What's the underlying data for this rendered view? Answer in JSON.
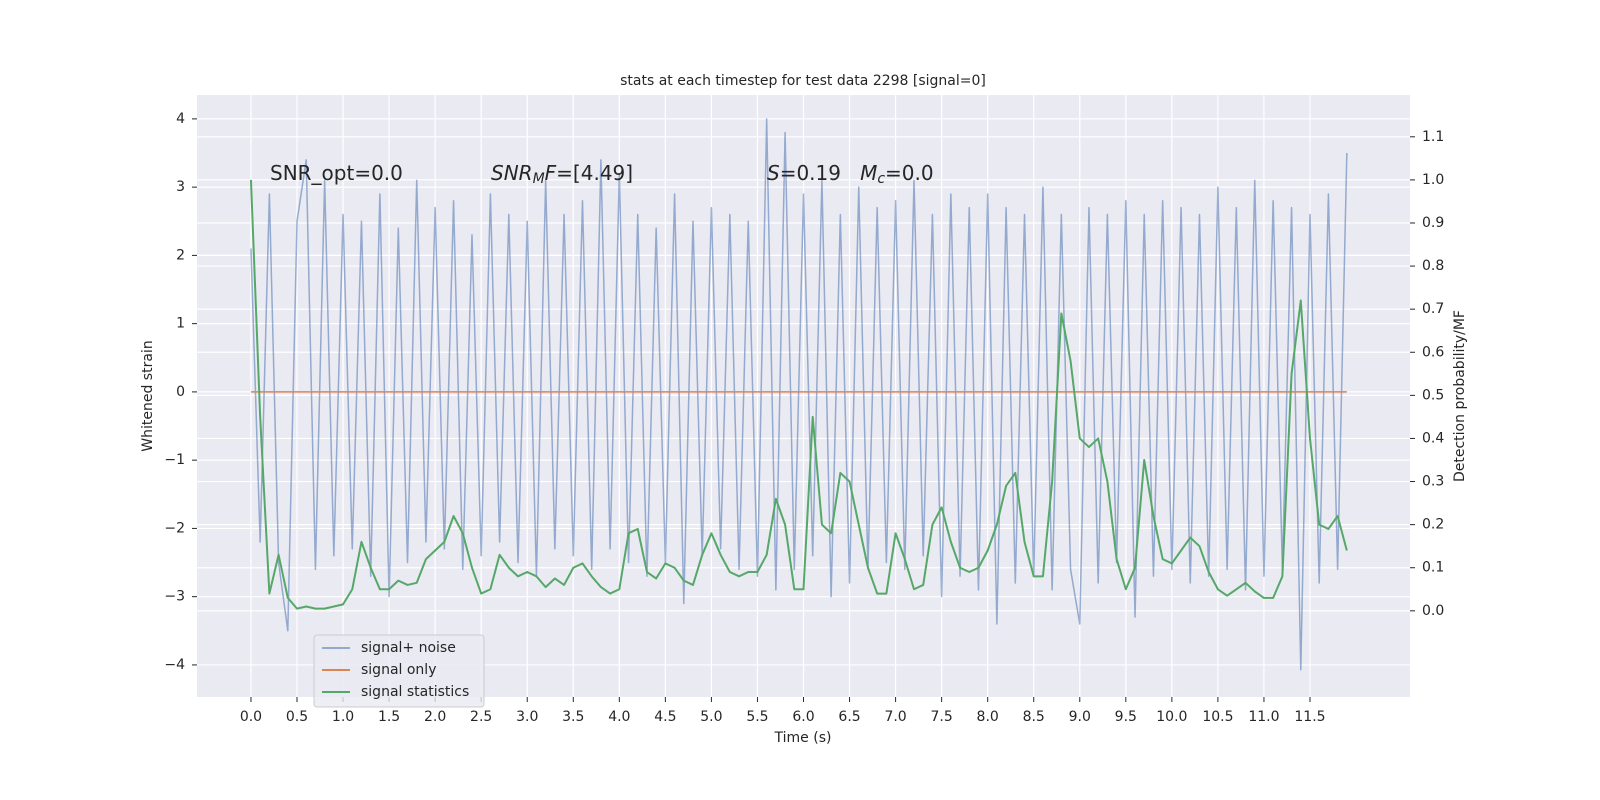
{
  "chart_data": {
    "type": "line",
    "title": "stats at each timestep for test data 2298 [signal=0]",
    "x_label": "Time (s)",
    "y_label": "Whitened strain",
    "y2_label": "Detection probability/MF",
    "annotations": [
      {
        "parts": [
          {
            "text": "SNR_opt=0.0",
            "style": "normal"
          }
        ]
      },
      {
        "parts": [
          {
            "text": "SNR",
            "style": "italic"
          },
          {
            "text": "M",
            "style": "sub"
          },
          {
            "text": "F",
            "style": "italic"
          },
          {
            "text": "=[4.49]",
            "style": "normal"
          }
        ]
      },
      {
        "parts": [
          {
            "text": "S",
            "style": "italic"
          },
          {
            "text": "=0.19   ",
            "style": "normal"
          },
          {
            "text": "M",
            "style": "italic"
          },
          {
            "text": "c",
            "style": "sub"
          },
          {
            "text": "=0.0",
            "style": "normal"
          }
        ]
      }
    ],
    "x": [
      0,
      0.1,
      0.2,
      0.3,
      0.4,
      0.5,
      0.6,
      0.7,
      0.8,
      0.9,
      1,
      1.1,
      1.2,
      1.3,
      1.4,
      1.5,
      1.6,
      1.7,
      1.8,
      1.9,
      2,
      2.1,
      2.2,
      2.3,
      2.4,
      2.5,
      2.6,
      2.7,
      2.8,
      2.9,
      3,
      3.1,
      3.2,
      3.3,
      3.4,
      3.5,
      3.6,
      3.7,
      3.8,
      3.9,
      4,
      4.1,
      4.2,
      4.3,
      4.4,
      4.5,
      4.6,
      4.7,
      4.8,
      4.9,
      5,
      5.1,
      5.2,
      5.3,
      5.4,
      5.5,
      5.6,
      5.7,
      5.8,
      5.9,
      6,
      6.1,
      6.2,
      6.3,
      6.4,
      6.5,
      6.6,
      6.7,
      6.8,
      6.9,
      7,
      7.1,
      7.2,
      7.3,
      7.4,
      7.5,
      7.6,
      7.7,
      7.8,
      7.9,
      8,
      8.1,
      8.2,
      8.3,
      8.4,
      8.5,
      8.6,
      8.7,
      8.8,
      8.9,
      9,
      9.1,
      9.2,
      9.3,
      9.4,
      9.5,
      9.6,
      9.7,
      9.8,
      9.9,
      10,
      10.1,
      10.2,
      10.3,
      10.4,
      10.5,
      10.6,
      10.7,
      10.8,
      10.9,
      11,
      11.1,
      11.2,
      11.3,
      11.4,
      11.5,
      11.6,
      11.7,
      11.8,
      11.9
    ],
    "series": [
      {
        "name": "signal+ noise",
        "color": "#4c72b0",
        "alpha": 0.55,
        "axis": "y",
        "values": [
          2.1,
          -2.2,
          2.9,
          -2.5,
          -3.5,
          2.5,
          3.4,
          -2.6,
          3.1,
          -2.4,
          2.6,
          -2.3,
          2.5,
          -2.7,
          2.9,
          -3.0,
          2.4,
          -2.5,
          3.1,
          -2.2,
          2.7,
          -2.3,
          2.8,
          -2.6,
          2.3,
          -2.4,
          2.9,
          -2.2,
          2.6,
          -2.5,
          2.5,
          -2.7,
          3.1,
          -2.3,
          2.6,
          -2.4,
          2.8,
          -2.6,
          3.4,
          -2.3,
          3.2,
          -2.5,
          2.6,
          -2.7,
          2.4,
          -2.5,
          2.9,
          -3.1,
          2.5,
          -2.4,
          2.7,
          -2.3,
          2.6,
          -2.6,
          2.5,
          -2.7,
          4.0,
          -2.9,
          3.8,
          -2.6,
          2.9,
          -2.4,
          3.1,
          -3.0,
          2.6,
          -2.8,
          3.0,
          -2.6,
          2.7,
          -2.5,
          2.8,
          -2.6,
          3.1,
          -2.4,
          2.6,
          -3.0,
          2.9,
          -2.7,
          2.7,
          -2.9,
          2.9,
          -3.4,
          2.7,
          -2.8,
          2.6,
          -2.7,
          3.0,
          -2.9,
          2.6,
          -2.6,
          -3.4,
          2.7,
          -2.8,
          2.6,
          -2.5,
          2.8,
          -3.3,
          2.6,
          -2.7,
          2.8,
          -2.6,
          2.7,
          -2.8,
          2.6,
          -2.7,
          3.0,
          -2.6,
          2.7,
          -2.9,
          3.1,
          -2.7,
          2.8,
          -2.6,
          2.7,
          -4.07,
          2.6,
          -2.8,
          2.9,
          -2.6,
          3.5
        ]
      },
      {
        "name": "signal only",
        "color": "#dd8452",
        "alpha": 1,
        "axis": "y",
        "values": [
          0,
          0,
          0,
          0,
          0,
          0,
          0,
          0,
          0,
          0,
          0,
          0,
          0,
          0,
          0,
          0,
          0,
          0,
          0,
          0,
          0,
          0,
          0,
          0,
          0,
          0,
          0,
          0,
          0,
          0,
          0,
          0,
          0,
          0,
          0,
          0,
          0,
          0,
          0,
          0,
          0,
          0,
          0,
          0,
          0,
          0,
          0,
          0,
          0,
          0,
          0,
          0,
          0,
          0,
          0,
          0,
          0,
          0,
          0,
          0,
          0,
          0,
          0,
          0,
          0,
          0,
          0,
          0,
          0,
          0,
          0,
          0,
          0,
          0,
          0,
          0,
          0,
          0,
          0,
          0,
          0,
          0,
          0,
          0,
          0,
          0,
          0,
          0,
          0,
          0,
          0,
          0,
          0,
          0,
          0,
          0,
          0,
          0,
          0,
          0,
          0,
          0,
          0,
          0,
          0,
          0,
          0,
          0,
          0,
          0,
          0,
          0,
          0,
          0,
          0,
          0,
          0,
          0,
          0,
          0
        ]
      },
      {
        "name": "signal statistics",
        "color": "#55a868",
        "alpha": 1,
        "axis": "y2",
        "values": [
          1.0,
          0.45,
          0.04,
          0.13,
          0.03,
          0.005,
          0.01,
          0.005,
          0.005,
          0.01,
          0.015,
          0.05,
          0.16,
          0.1,
          0.05,
          0.05,
          0.07,
          0.06,
          0.065,
          0.12,
          0.14,
          0.16,
          0.22,
          0.18,
          0.1,
          0.04,
          0.05,
          0.13,
          0.1,
          0.08,
          0.09,
          0.08,
          0.055,
          0.075,
          0.06,
          0.1,
          0.11,
          0.08,
          0.055,
          0.04,
          0.05,
          0.18,
          0.19,
          0.09,
          0.075,
          0.11,
          0.1,
          0.07,
          0.06,
          0.13,
          0.18,
          0.13,
          0.09,
          0.08,
          0.09,
          0.09,
          0.13,
          0.26,
          0.2,
          0.05,
          0.05,
          0.45,
          0.2,
          0.18,
          0.32,
          0.3,
          0.2,
          0.1,
          0.04,
          0.04,
          0.18,
          0.12,
          0.05,
          0.06,
          0.2,
          0.24,
          0.16,
          0.1,
          0.09,
          0.1,
          0.14,
          0.2,
          0.29,
          0.32,
          0.16,
          0.08,
          0.08,
          0.3,
          0.69,
          0.58,
          0.4,
          0.38,
          0.4,
          0.3,
          0.12,
          0.05,
          0.1,
          0.35,
          0.22,
          0.12,
          0.11,
          0.14,
          0.17,
          0.15,
          0.09,
          0.05,
          0.035,
          0.05,
          0.065,
          0.045,
          0.03,
          0.03,
          0.08,
          0.55,
          0.72,
          0.4,
          0.2,
          0.19,
          0.22,
          0.14
        ]
      }
    ],
    "xlim": [
      -0.586,
      12.586
    ],
    "ylim": [
      -4.47,
      4.35
    ],
    "y2lim": [
      -0.2,
      1.197
    ],
    "xticks": [
      {
        "value": 0,
        "label": "0.0"
      },
      {
        "value": 0.5,
        "label": "0.5"
      },
      {
        "value": 1,
        "label": "1.0"
      },
      {
        "value": 1.5,
        "label": "1.5"
      },
      {
        "value": 2,
        "label": "2.0"
      },
      {
        "value": 2.5,
        "label": "2.5"
      },
      {
        "value": 3,
        "label": "3.0"
      },
      {
        "value": 3.5,
        "label": "3.5"
      },
      {
        "value": 4,
        "label": "4.0"
      },
      {
        "value": 4.5,
        "label": "4.5"
      },
      {
        "value": 5,
        "label": "5.0"
      },
      {
        "value": 5.5,
        "label": "5.5"
      },
      {
        "value": 6,
        "label": "6.0"
      },
      {
        "value": 6.5,
        "label": "6.5"
      },
      {
        "value": 7,
        "label": "7.0"
      },
      {
        "value": 7.5,
        "label": "7.5"
      },
      {
        "value": 8,
        "label": "8.0"
      },
      {
        "value": 8.5,
        "label": "8.5"
      },
      {
        "value": 9,
        "label": "9.0"
      },
      {
        "value": 9.5,
        "label": "9.5"
      },
      {
        "value": 10,
        "label": "10.0"
      },
      {
        "value": 10.5,
        "label": "10.5"
      },
      {
        "value": 11,
        "label": "11.0"
      },
      {
        "value": 11.5,
        "label": "11.5"
      }
    ],
    "yticks": [
      {
        "value": -4,
        "label": "−4"
      },
      {
        "value": -3,
        "label": "−3"
      },
      {
        "value": -2,
        "label": "−2"
      },
      {
        "value": -1,
        "label": "−1"
      },
      0,
      1,
      2,
      3,
      4
    ],
    "y2ticks": [
      {
        "value": 0,
        "label": "0.0"
      },
      {
        "value": 0.1,
        "label": "0.1"
      },
      {
        "value": 0.2,
        "label": "0.2"
      },
      {
        "value": 0.3,
        "label": "0.3"
      },
      {
        "value": 0.4,
        "label": "0.4"
      },
      {
        "value": 0.5,
        "label": "0.5"
      },
      {
        "value": 0.6,
        "label": "0.6"
      },
      {
        "value": 0.7,
        "label": "0.7"
      },
      {
        "value": 0.8,
        "label": "0.8"
      },
      {
        "value": 0.9,
        "label": "0.9"
      },
      {
        "value": 1,
        "label": "1.0"
      },
      {
        "value": 1.1,
        "label": "1.1"
      }
    ],
    "grid": true,
    "legend": "lower left"
  }
}
